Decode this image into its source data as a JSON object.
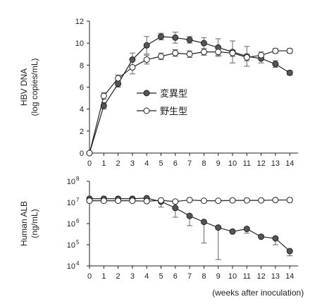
{
  "chart_data": [
    {
      "type": "line",
      "ylabel": [
        "HBV DNA",
        "(log copies/mL)"
      ],
      "ylim": [
        0,
        12
      ],
      "yticks": [
        "0",
        "2",
        "4",
        "6",
        "8",
        "10",
        "12"
      ],
      "xticks": [
        "0",
        "1",
        "2",
        "3",
        "4",
        "5",
        "6",
        "7",
        "8",
        "9",
        "10",
        "11",
        "12",
        "13",
        "14"
      ],
      "x": [
        0,
        1,
        2,
        3,
        4,
        5,
        6,
        7,
        8,
        9,
        10,
        11,
        12,
        13,
        14
      ],
      "legend": {
        "placement": "center-left"
      },
      "series": [
        {
          "name": "変異型",
          "marker": "filled",
          "values": [
            0,
            4.3,
            6.3,
            8.5,
            9.8,
            10.6,
            10.5,
            10.3,
            10.0,
            9.6,
            9.2,
            8.8,
            8.6,
            8.1,
            7.3
          ],
          "err": [
            0,
            0.3,
            0.3,
            0.6,
            0.8,
            0.3,
            0.5,
            0.3,
            0.5,
            0.8,
            1.0,
            0.9,
            0.4,
            0.3,
            0.2
          ]
        },
        {
          "name": "野生型",
          "marker": "open",
          "values": [
            0,
            5.2,
            6.8,
            7.8,
            8.5,
            8.8,
            9.1,
            9.0,
            9.2,
            9.2,
            9.1,
            8.7,
            8.9,
            9.3,
            9.3
          ],
          "err": [
            0,
            0.3,
            0.3,
            0.6,
            0.4,
            0.3,
            0.3,
            0.3,
            0.3,
            0.3,
            0.3,
            0.3,
            0.3,
            0.2,
            0.2
          ]
        }
      ]
    },
    {
      "type": "line",
      "ylabel": [
        "Human ALB",
        "(ng/mL)"
      ],
      "yscale": "log",
      "ylim": [
        10000,
        100000000
      ],
      "yticks": [
        {
          "base": "10",
          "exp": "4"
        },
        {
          "base": "10",
          "exp": "5"
        },
        {
          "base": "10",
          "exp": "6"
        },
        {
          "base": "10",
          "exp": "7"
        },
        {
          "base": "10",
          "exp": "8"
        }
      ],
      "xticks": [
        "0",
        "1",
        "2",
        "3",
        "4",
        "5",
        "6",
        "7",
        "8",
        "9",
        "10",
        "11",
        "12",
        "13",
        "14"
      ],
      "xlabel": "(weeks after inoculation)",
      "x": [
        0,
        1,
        2,
        3,
        4,
        5,
        6,
        7,
        8,
        9,
        10,
        11,
        12,
        13,
        14
      ],
      "series": [
        {
          "marker": "filled",
          "values": [
            15000000,
            15000000,
            15000000,
            15000000,
            16000000,
            11000000,
            5500000,
            2300000,
            1200000,
            650000,
            420000,
            560000,
            240000,
            200000,
            50000
          ],
          "err_low": [
            13000000,
            13000000,
            13000000,
            13000000,
            13000000,
            6000000,
            2000000,
            800000,
            120000,
            20000,
            420000,
            350000,
            240000,
            100000,
            30000
          ]
        },
        {
          "marker": "open",
          "values": [
            12000000,
            12000000,
            12000000,
            12000000,
            11500000,
            12500000,
            11000000,
            13000000,
            12000000,
            12000000,
            12500000,
            12500000,
            12500000,
            13000000,
            13000000
          ],
          "err_low": [
            12000000,
            12000000,
            12000000,
            12000000,
            11500000,
            12500000,
            11000000,
            13000000,
            12000000,
            12000000,
            12500000,
            12500000,
            12500000,
            13000000,
            13000000
          ]
        }
      ]
    }
  ]
}
